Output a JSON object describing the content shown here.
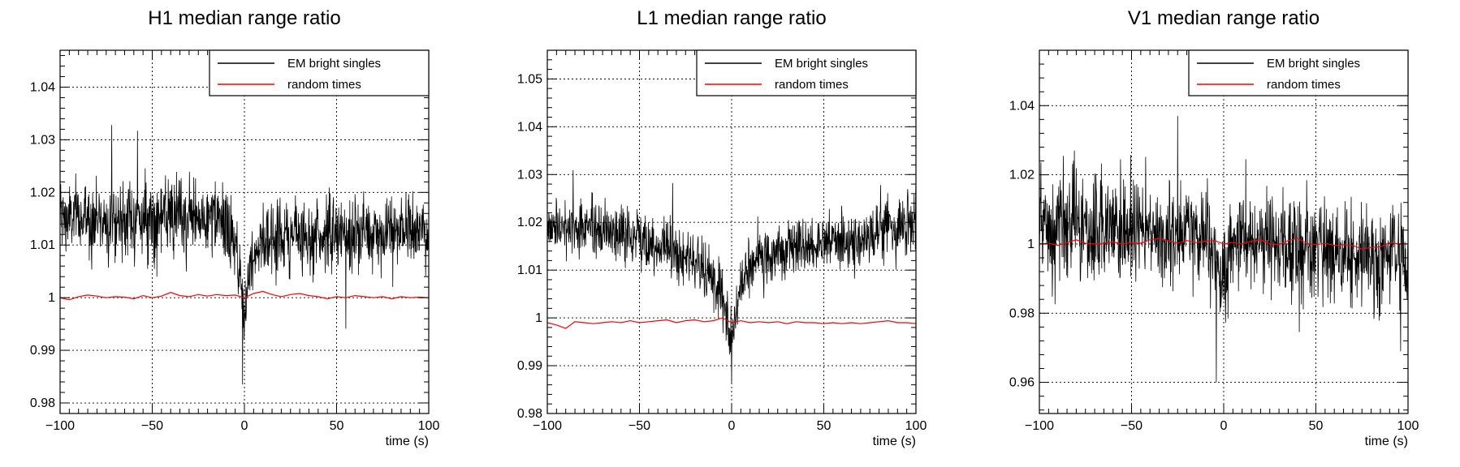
{
  "chart_data": [
    {
      "type": "line",
      "title": "H1 median range ratio",
      "xlabel": "time (s)",
      "ylabel": "",
      "xlim": [
        -100,
        100
      ],
      "ylim": [
        0.978,
        1.047
      ],
      "xticks": [
        -100,
        -50,
        0,
        50,
        100
      ],
      "yticks": [
        0.98,
        0.99,
        1,
        1.01,
        1.02,
        1.03,
        1.04
      ],
      "ytick_labels": [
        "0.98",
        "0.99",
        "1",
        "1.01",
        "1.02",
        "1.03",
        "1.04"
      ],
      "grid": true,
      "legend_position": "top-right",
      "series": [
        {
          "name": "EM bright singles",
          "color": "#000000",
          "style": "dense-noise",
          "baseline": [
            [
              -100,
              1.015
            ],
            [
              -20,
              1.015
            ],
            [
              -10,
              1.014
            ],
            [
              -5,
              1.01
            ],
            [
              -2,
              1.004
            ],
            [
              0,
              0.994
            ],
            [
              2,
              1.006
            ],
            [
              5,
              1.009
            ],
            [
              10,
              1.011
            ],
            [
              30,
              1.012
            ],
            [
              70,
              1.012
            ],
            [
              100,
              1.013
            ]
          ],
          "noise": 0.0035,
          "extremes": [
            [
              -1,
              0.9835
            ],
            [
              -72,
              1.0328
            ],
            [
              55,
              0.9941
            ],
            [
              -58,
              1.0317
            ]
          ]
        },
        {
          "name": "random times",
          "color": "#ff0000",
          "x": [
            -100,
            -95,
            -90,
            -85,
            -80,
            -75,
            -70,
            -65,
            -60,
            -55,
            -50,
            -45,
            -40,
            -35,
            -30,
            -25,
            -20,
            -15,
            -10,
            -5,
            0,
            5,
            10,
            15,
            20,
            25,
            30,
            35,
            40,
            45,
            50,
            55,
            60,
            65,
            70,
            75,
            80,
            85,
            90,
            95,
            100
          ],
          "y": [
            1.0,
            0.9996,
            1.0002,
            1.0005,
            1.0003,
            1.0,
            1.0002,
            1.0001,
            0.9998,
            1.0004,
            1.0,
            1.0003,
            1.001,
            1.0004,
            1.0002,
            1.0006,
            1.0003,
            1.0006,
            1.0004,
            1.0005,
            1.0,
            1.0008,
            1.0012,
            1.0006,
            1.0002,
            1.0006,
            1.0008,
            1.0004,
            1.0002,
            0.9998,
            1.0002,
            1.0,
            1.0004,
            1.0002,
            1.0,
            1.0002,
            0.9998,
            1.0002,
            1.0,
            1.0001,
            1.0
          ]
        }
      ]
    },
    {
      "type": "line",
      "title": "L1 median range ratio",
      "xlabel": "time (s)",
      "ylabel": "",
      "xlim": [
        -100,
        100
      ],
      "ylim": [
        0.98,
        1.056
      ],
      "xticks": [
        -100,
        -50,
        0,
        50,
        100
      ],
      "yticks": [
        0.98,
        0.99,
        1,
        1.01,
        1.02,
        1.03,
        1.04,
        1.05
      ],
      "ytick_labels": [
        "0.98",
        "0.99",
        "1",
        "1.01",
        "1.02",
        "1.03",
        "1.04",
        "1.05"
      ],
      "grid": true,
      "legend_position": "top-right",
      "series": [
        {
          "name": "EM bright singles",
          "color": "#000000",
          "style": "dense-noise",
          "baseline": [
            [
              -100,
              1.0195
            ],
            [
              -50,
              1.017
            ],
            [
              -20,
              1.012
            ],
            [
              -10,
              1.008
            ],
            [
              -5,
              1.004
            ],
            [
              -2,
              1.0
            ],
            [
              0,
              0.995
            ],
            [
              2,
              1.001
            ],
            [
              5,
              1.006
            ],
            [
              10,
              1.011
            ],
            [
              30,
              1.014
            ],
            [
              70,
              1.017
            ],
            [
              100,
              1.02
            ]
          ],
          "noise": 0.003,
          "extremes": [
            [
              0,
              0.9863
            ],
            [
              -86,
              1.0309
            ],
            [
              -32,
              1.0282
            ],
            [
              100,
              1.0285
            ]
          ]
        },
        {
          "name": "random times",
          "color": "#ff0000",
          "x": [
            -100,
            -95,
            -90,
            -85,
            -80,
            -75,
            -70,
            -65,
            -60,
            -55,
            -50,
            -45,
            -40,
            -35,
            -30,
            -25,
            -20,
            -15,
            -10,
            -5,
            0,
            5,
            10,
            15,
            20,
            25,
            30,
            35,
            40,
            45,
            50,
            55,
            60,
            65,
            70,
            75,
            80,
            85,
            90,
            95,
            100
          ],
          "y": [
            0.999,
            0.9985,
            0.9978,
            0.9992,
            0.999,
            0.9988,
            0.999,
            0.9992,
            0.999,
            0.9994,
            0.999,
            0.9992,
            0.9994,
            0.9996,
            0.999,
            0.9994,
            0.9996,
            0.9992,
            0.9994,
            1.0,
            0.999,
            0.9994,
            0.999,
            0.9992,
            0.999,
            0.9992,
            0.9988,
            0.9992,
            0.999,
            0.999,
            0.9988,
            0.999,
            0.9988,
            0.999,
            0.9988,
            0.999,
            0.9992,
            0.9994,
            0.999,
            0.999,
            0.9988
          ]
        }
      ]
    },
    {
      "type": "line",
      "title": "V1 median range ratio",
      "xlabel": "time (s)",
      "ylabel": "",
      "xlim": [
        -100,
        100
      ],
      "ylim": [
        0.951,
        1.056
      ],
      "xticks": [
        -100,
        -50,
        0,
        50,
        100
      ],
      "yticks": [
        0.96,
        0.98,
        1,
        1.02,
        1.04
      ],
      "ytick_labels": [
        "0.96",
        "0.98",
        "1",
        "1.02",
        "1.04"
      ],
      "grid": true,
      "legend_position": "top-right",
      "series": [
        {
          "name": "EM bright singles",
          "color": "#000000",
          "style": "dense-noise",
          "baseline": [
            [
              -100,
              1.004
            ],
            [
              -40,
              1.003
            ],
            [
              -10,
              1.002
            ],
            [
              -5,
              0.996
            ],
            [
              0,
              0.988
            ],
            [
              3,
              0.996
            ],
            [
              8,
              1.002
            ],
            [
              40,
              0.999
            ],
            [
              100,
              0.996
            ]
          ],
          "noise": 0.0075,
          "extremes": [
            [
              -4,
              0.96
            ],
            [
              -25,
              1.037
            ],
            [
              96,
              0.969
            ],
            [
              -81,
              1.027
            ],
            [
              12,
              1.0245
            ]
          ]
        },
        {
          "name": "random times",
          "color": "#ff0000",
          "x": [
            -100,
            -95,
            -90,
            -85,
            -80,
            -75,
            -70,
            -65,
            -60,
            -55,
            -50,
            -45,
            -40,
            -35,
            -30,
            -25,
            -20,
            -15,
            -10,
            -5,
            0,
            5,
            10,
            15,
            20,
            25,
            30,
            35,
            40,
            45,
            50,
            55,
            60,
            65,
            70,
            75,
            80,
            85,
            90,
            95,
            100
          ],
          "y": [
            1.0,
            1.0002,
            0.9996,
            1.0004,
            1.0012,
            1.0002,
            1.0,
            1.0002,
            1.0006,
            1.0,
            1.0004,
            1.0002,
            1.0012,
            1.0016,
            1.001,
            1.0002,
            1.001,
            1.0004,
            1.0008,
            1.001,
            1.0,
            1.0004,
            1.0,
            1.0008,
            1.0012,
            1.0,
            0.9998,
            1.001,
            1.0016,
            1.0002,
            0.9998,
            1.0002,
            0.9996,
            0.9998,
            0.9996,
            0.9985,
            0.999,
            0.9992,
            1.0004,
            1.0,
            1.0
          ]
        }
      ]
    }
  ]
}
